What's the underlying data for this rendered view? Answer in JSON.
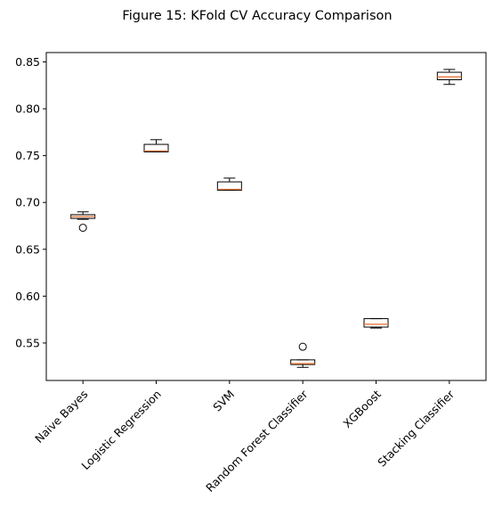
{
  "chart_data": {
    "type": "boxplot",
    "title": "Figure 15: KFold CV Accuracy Comparison",
    "xlabel": "",
    "ylabel": "",
    "ylim": [
      0.51,
      0.86
    ],
    "yticks": [
      "0.55",
      "0.60",
      "0.65",
      "0.70",
      "0.75",
      "0.80",
      "0.85"
    ],
    "grid": false,
    "categories": [
      "Naive Bayes",
      "Logistic Regression",
      "SVM",
      "Random Forest Classifier",
      "XGBoost",
      "Stacking Classifier"
    ],
    "boxes": [
      {
        "name": "Naive Bayes",
        "whisker_low": 0.682,
        "q1": 0.683,
        "median": 0.685,
        "q3": 0.687,
        "whisker_high": 0.69,
        "outliers": [
          0.673
        ]
      },
      {
        "name": "Logistic Regression",
        "whisker_low": 0.754,
        "q1": 0.754,
        "median": 0.755,
        "q3": 0.762,
        "whisker_high": 0.767,
        "outliers": []
      },
      {
        "name": "SVM",
        "whisker_low": 0.713,
        "q1": 0.713,
        "median": 0.714,
        "q3": 0.722,
        "whisker_high": 0.726,
        "outliers": []
      },
      {
        "name": "Random Forest Classifier",
        "whisker_low": 0.524,
        "q1": 0.527,
        "median": 0.528,
        "q3": 0.532,
        "whisker_high": 0.532,
        "outliers": [
          0.546
        ]
      },
      {
        "name": "XGBoost",
        "whisker_low": 0.566,
        "q1": 0.567,
        "median": 0.57,
        "q3": 0.576,
        "whisker_high": 0.576,
        "outliers": []
      },
      {
        "name": "Stacking Classifier",
        "whisker_low": 0.826,
        "q1": 0.831,
        "median": 0.834,
        "q3": 0.839,
        "whisker_high": 0.842,
        "outliers": []
      }
    ],
    "colors": {
      "box": "#000000",
      "median": "#e8793a",
      "axis": "#000000",
      "background": "#ffffff"
    }
  }
}
